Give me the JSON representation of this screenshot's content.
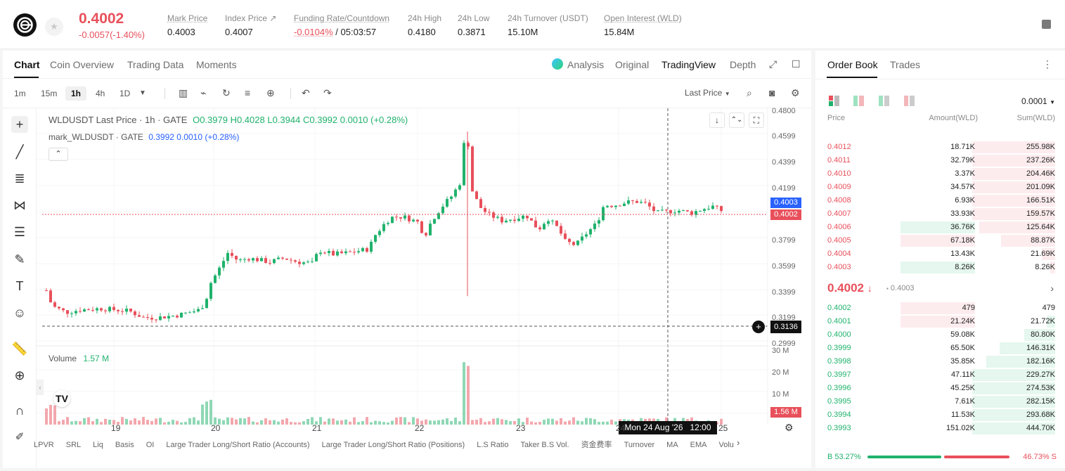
{
  "header": {
    "price": "0.4002",
    "change": "-0.0057(-1.40%)",
    "stats": [
      {
        "label": "Mark Price",
        "value": "0.4003"
      },
      {
        "label": "Index Price ↗",
        "value": "0.4007"
      },
      {
        "label": "Funding Rate/Countdown",
        "value_a": "-0.0104%",
        "value_b": "/ 05:03:57"
      },
      {
        "label": "24h High",
        "value": "0.4180"
      },
      {
        "label": "24h Low",
        "value": "0.3871"
      },
      {
        "label": "24h Turnover (USDT)",
        "value": "15.10M"
      },
      {
        "label": "Open Interest (WLD)",
        "value": "15.84M"
      }
    ]
  },
  "chart_tabs": [
    "Chart",
    "Coin Overview",
    "Trading Data",
    "Moments"
  ],
  "view_tabs": [
    "Analysis",
    "Original",
    "TradingView",
    "Depth"
  ],
  "timeframes": [
    "1m",
    "15m",
    "1h",
    "4h",
    "1D"
  ],
  "toolbar": {
    "last_price": "Last Price"
  },
  "legend": {
    "symbol": "WLDUSDT Last Price · 1h · GATE",
    "o": "O0.3979",
    "h": "H0.4028",
    "l": "L0.3944",
    "c": "C0.3992",
    "chg": "0.0010 (+0.28%)",
    "mark": "mark_WLDUSDT · GATE",
    "mark_val": "0.3992",
    "mark_chg": "0.0010 (+0.28%)"
  },
  "volume": {
    "label": "Volume",
    "value": "1.57 M"
  },
  "price_axis": [
    "0.4800",
    "0.4599",
    "0.4399",
    "0.4199",
    "0.3799",
    "0.3599",
    "0.3399",
    "0.3199",
    "0.2999"
  ],
  "volume_axis": [
    "30 M",
    "20 M",
    "10 M"
  ],
  "markers": {
    "mark_price": "0.4003",
    "last_price": "0.4002",
    "crosshair": "0.3136",
    "volume_cur": "1.56 M"
  },
  "time_axis": [
    "19",
    "20",
    "21",
    "22",
    "23",
    "24",
    "25"
  ],
  "crosshair_time": "Mon 24 Aug '26   12:00",
  "indicators": [
    "LPVR",
    "SRL",
    "Liq",
    "Basis",
    "OI",
    "Large Trader Long/Short Ratio (Accounts)",
    "Large Trader Long/Short Ratio (Positions)",
    "L.S Ratio",
    "Taker B.S Vol.",
    "资金费率",
    "Turnover",
    "MA",
    "EMA",
    "Volu"
  ],
  "orderbook": {
    "tabs": [
      "Order Book",
      "Trades"
    ],
    "precision": "0.0001",
    "headers": [
      "Price",
      "Amount(WLD)",
      "Sum(WLD)"
    ],
    "asks": [
      {
        "price": "0.4012",
        "amount": "18.71K",
        "sum": "255.98K"
      },
      {
        "price": "0.4011",
        "amount": "32.79K",
        "sum": "237.26K"
      },
      {
        "price": "0.4010",
        "amount": "3.37K",
        "sum": "204.46K"
      },
      {
        "price": "0.4009",
        "amount": "34.57K",
        "sum": "201.09K"
      },
      {
        "price": "0.4008",
        "amount": "6.93K",
        "sum": "166.51K"
      },
      {
        "price": "0.4007",
        "amount": "33.93K",
        "sum": "159.57K"
      },
      {
        "price": "0.4006",
        "amount": "36.76K",
        "sum": "125.64K"
      },
      {
        "price": "0.4005",
        "amount": "67.18K",
        "sum": "88.87K"
      },
      {
        "price": "0.4004",
        "amount": "13.43K",
        "sum": "21.69K"
      },
      {
        "price": "0.4003",
        "amount": "8.26K",
        "sum": "8.26K"
      }
    ],
    "mid_price": "0.4002",
    "mid_mark": "0.4003",
    "bids": [
      {
        "price": "0.4002",
        "amount": "479",
        "sum": "479"
      },
      {
        "price": "0.4001",
        "amount": "21.24K",
        "sum": "21.72K"
      },
      {
        "price": "0.4000",
        "amount": "59.08K",
        "sum": "80.80K"
      },
      {
        "price": "0.3999",
        "amount": "65.50K",
        "sum": "146.31K"
      },
      {
        "price": "0.3998",
        "amount": "35.85K",
        "sum": "182.16K"
      },
      {
        "price": "0.3997",
        "amount": "47.11K",
        "sum": "229.27K"
      },
      {
        "price": "0.3996",
        "amount": "45.25K",
        "sum": "274.53K"
      },
      {
        "price": "0.3995",
        "amount": "7.61K",
        "sum": "282.15K"
      },
      {
        "price": "0.3994",
        "amount": "11.53K",
        "sum": "293.68K"
      },
      {
        "price": "0.3993",
        "amount": "151.02K",
        "sum": "444.70K"
      }
    ],
    "buy_ratio": "B 53.27%",
    "sell_ratio": "46.73% S",
    "buy_pct": 53.27
  },
  "colors": {
    "up": "#20b26c",
    "down": "#e8505b",
    "accent": "#2962ff"
  }
}
